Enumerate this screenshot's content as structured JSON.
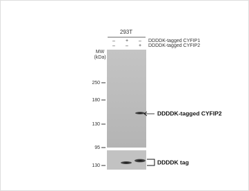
{
  "header": {
    "cell_line": "293T"
  },
  "conditions": [
    {
      "label": "DDDDK-tagged CYFIP1",
      "lanes": [
        "–",
        "+",
        "–"
      ]
    },
    {
      "label": "DDDDK-tagged CYFIP2",
      "lanes": [
        "–",
        "–",
        "+"
      ]
    }
  ],
  "mw_title": [
    "MW",
    "(kDa)"
  ],
  "upper_markers": [
    "250",
    "180",
    "130",
    "95"
  ],
  "lower_markers": [
    "130"
  ],
  "annotations": {
    "upper_band": "DDDDK-tagged CYFIP2",
    "lower_band": "DDDDK tag"
  }
}
